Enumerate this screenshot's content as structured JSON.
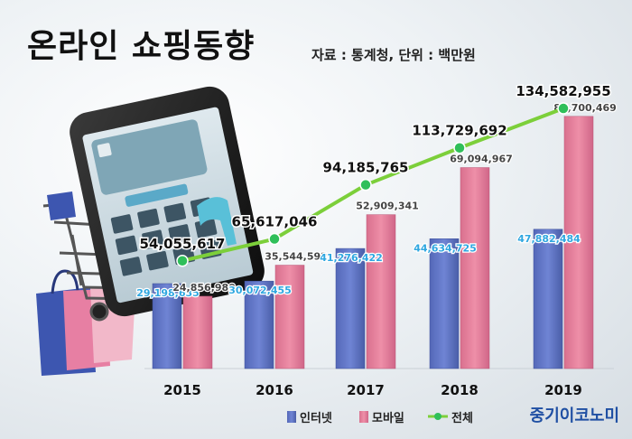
{
  "header": {
    "title": "온라인 쇼핑동향",
    "subtitle": "자료 : 통계청, 단위 : 백만원"
  },
  "source_logo": "중기이코노미",
  "colors": {
    "internet": "#6f84d4",
    "mobile": "#ee8fa8",
    "total": "#7ccf3a",
    "total_marker": "#2fbf5a"
  },
  "chart_data": {
    "type": "bar",
    "categories": [
      "2015",
      "2016",
      "2017",
      "2018",
      "2019"
    ],
    "series": [
      {
        "name": "인터넷",
        "type": "bar",
        "values": [
          29198635,
          30072455,
          41276422,
          44634725,
          47882484
        ],
        "labels": [
          "29,198,635",
          "30,072,455",
          "41,276,422",
          "44,634,725",
          "47,882,484"
        ]
      },
      {
        "name": "모바일",
        "type": "bar",
        "values": [
          24856980,
          35544592,
          52909341,
          69094967,
          86700469
        ],
        "labels": [
          "24,856,980",
          "35,544,592",
          "52,909,341",
          "69,094,967",
          "86,700,469"
        ]
      },
      {
        "name": "전체",
        "type": "line",
        "values": [
          54055617,
          65617046,
          94185765,
          113729692,
          134582955
        ],
        "labels": [
          "54,055,617",
          "65,617,046",
          "94,185,765",
          "113,729,692",
          "134,582,955"
        ]
      }
    ],
    "legend": {
      "position": "bottom",
      "items": [
        "인터넷",
        "모바일",
        "전체"
      ]
    },
    "grid": false
  }
}
